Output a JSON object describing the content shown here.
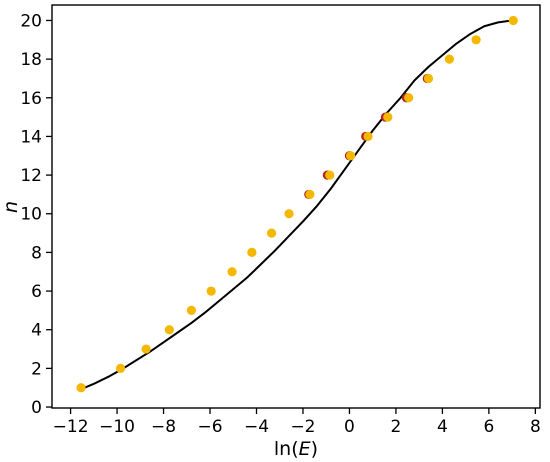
{
  "chart_data": {
    "type": "scatter",
    "xlabel_main": "ln(",
    "xlabel_var": "E",
    "xlabel_tail": ")",
    "ylabel": "n",
    "xlim": [
      -12.8,
      8.2
    ],
    "ylim": [
      -0.05,
      20.8
    ],
    "x_ticks": [
      -12,
      -10,
      -8,
      -6,
      -4,
      -2,
      0,
      2,
      4,
      6,
      8
    ],
    "x_tick_labels": [
      "−12",
      "−10",
      "−8",
      "−6",
      "−4",
      "−2",
      "0",
      "2",
      "4",
      "6",
      "8"
    ],
    "y_ticks": [
      0,
      2,
      4,
      6,
      8,
      10,
      12,
      14,
      16,
      18,
      20
    ],
    "y_tick_labels": [
      "0",
      "2",
      "4",
      "6",
      "8",
      "10",
      "12",
      "14",
      "16",
      "18",
      "20"
    ],
    "grid": false,
    "legend": "none",
    "colors": {
      "curve": "#000000",
      "red_points": "#b22222",
      "orange_points": "#f5b800"
    },
    "series": [
      {
        "kind": "line",
        "x": [
          -11.6,
          -11.0,
          -10.4,
          -9.8,
          -9.2,
          -8.6,
          -8.0,
          -7.4,
          -6.8,
          -6.2,
          -5.6,
          -5.0,
          -4.4,
          -3.8,
          -3.2,
          -2.6,
          -2.0,
          -1.4,
          -0.8,
          -0.2,
          0.4,
          1.0,
          1.6,
          2.2,
          2.8,
          3.4,
          4.0,
          4.6,
          5.2,
          5.8,
          6.4,
          7.0
        ],
        "y": [
          0.9,
          1.2,
          1.55,
          1.95,
          2.4,
          2.85,
          3.35,
          3.85,
          4.35,
          4.9,
          5.5,
          6.1,
          6.7,
          7.4,
          8.1,
          8.85,
          9.6,
          10.4,
          11.3,
          12.3,
          13.3,
          14.3,
          15.2,
          16.0,
          16.9,
          17.6,
          18.2,
          18.8,
          19.3,
          19.7,
          19.9,
          20.0
        ]
      },
      {
        "kind": "points",
        "color": "red_points",
        "x": [
          -1.75,
          -0.95,
          0.0,
          0.7,
          1.55,
          2.45,
          3.35
        ],
        "y": [
          11.0,
          12.0,
          13.0,
          14.0,
          15.0,
          16.0,
          17.0
        ]
      },
      {
        "kind": "points",
        "color": "orange_points",
        "x": [
          -11.55,
          -9.85,
          -8.75,
          -7.75,
          -6.8,
          -5.95,
          -5.05,
          -4.2,
          -3.35,
          -2.6,
          -1.7,
          -0.85,
          0.05,
          0.8,
          1.65,
          2.55,
          3.4,
          4.3,
          5.45,
          7.05
        ],
        "y": [
          1.0,
          2.0,
          3.0,
          4.0,
          5.0,
          6.0,
          7.0,
          8.0,
          9.0,
          10.0,
          11.0,
          12.0,
          13.0,
          14.0,
          15.0,
          16.0,
          17.0,
          18.0,
          19.0,
          20.0
        ]
      }
    ]
  }
}
